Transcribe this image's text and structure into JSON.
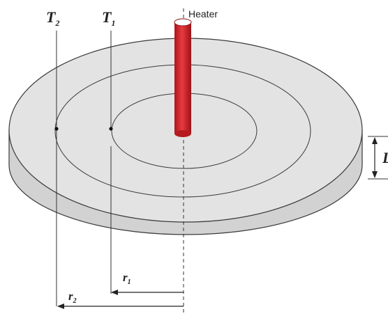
{
  "diagram": {
    "labels": {
      "t1": "T",
      "t1_sub": "1",
      "t2": "T",
      "t2_sub": "2",
      "heater": "Heater",
      "r1": "r",
      "r1_sub": "1",
      "r2": "r",
      "r2_sub": "2",
      "thickness": "L"
    },
    "colors": {
      "disk_top": "#e3e3e3",
      "disk_side": "#d2d2d2",
      "outline": "#3a3a3a",
      "heater": "#d8232a",
      "heater_top": "#ffffff",
      "background": "#ffffff"
    }
  }
}
